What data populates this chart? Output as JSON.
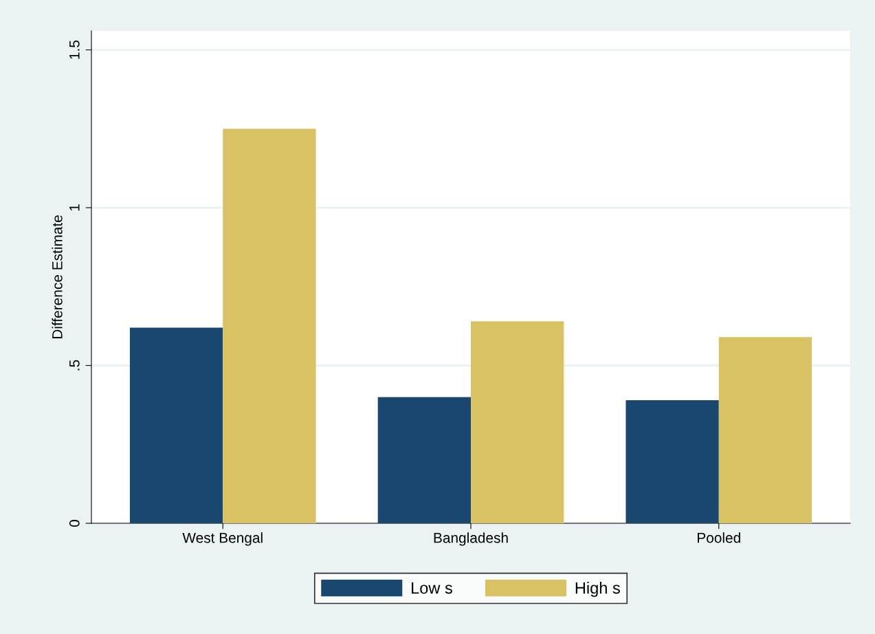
{
  "chart_data": {
    "type": "bar",
    "ylabel": "Difference Estimate",
    "categories": [
      "West Bengal",
      "Bangladesh",
      "Pooled"
    ],
    "series": [
      {
        "name": "Low s",
        "color": "#1a476f",
        "values": [
          0.62,
          0.4,
          0.39
        ]
      },
      {
        "name": "High s",
        "color": "#d8c264",
        "values": [
          1.25,
          0.64,
          0.59
        ]
      }
    ],
    "ylim": [
      0,
      1.56
    ],
    "yticks": [
      0,
      {
        "value": 0.5,
        "label": ".5"
      },
      1,
      1.5
    ],
    "grid": "y",
    "legend": "bottom"
  }
}
